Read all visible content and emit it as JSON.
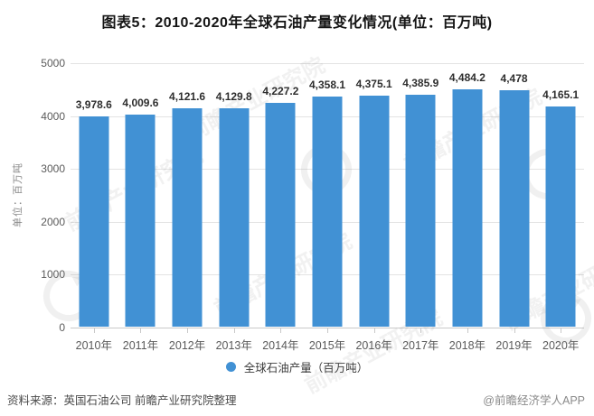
{
  "title": "图表5：2010-2020年全球石油产量变化情况(单位：百万吨)",
  "y_axis_title": "单位：百万吨",
  "legend": {
    "label": "全球石油产量（百万吨）",
    "marker_color": "#4191d4"
  },
  "footer": {
    "source": "资料来源：英国石油公司 前瞻产业研究院整理",
    "credit": "@前瞻经济学人APP"
  },
  "watermark_text": "前瞻产业研究院",
  "chart_data": {
    "type": "bar",
    "title": "图表5：2010-2020年全球石油产量变化情况(单位：百万吨)",
    "categories": [
      "2010年",
      "2011年",
      "2012年",
      "2013年",
      "2014年",
      "2015年",
      "2016年",
      "2017年",
      "2018年",
      "2019年",
      "2020年"
    ],
    "values": [
      3978.6,
      4009.6,
      4121.6,
      4129.8,
      4227.2,
      4358.1,
      4375.1,
      4385.9,
      4484.2,
      4478,
      4165.1
    ],
    "value_labels": [
      "3,978.6",
      "4,009.6",
      "4,121.6",
      "4,129.8",
      "4,227.2",
      "4,358.1",
      "4,375.1",
      "4,385.9",
      "4,484.2",
      "4,478",
      "4,165.1"
    ],
    "xlabel": "",
    "ylabel": "单位：百万吨",
    "ylim": [
      0,
      5000
    ],
    "yticks": [
      0,
      1000,
      2000,
      3000,
      4000,
      5000
    ],
    "grid": true,
    "bar_color": "#4191d4",
    "legend": [
      "全球石油产量（百万吨）"
    ],
    "legend_position": "bottom"
  }
}
